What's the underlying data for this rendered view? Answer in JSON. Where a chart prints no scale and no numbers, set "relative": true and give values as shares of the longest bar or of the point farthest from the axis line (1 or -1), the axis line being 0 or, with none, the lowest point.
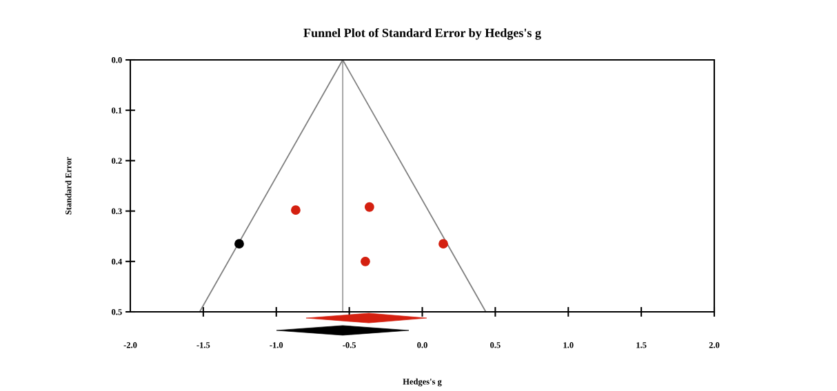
{
  "chart_data": [
    {
      "type": "scatter",
      "title": "Funnel Plot of Standard Error by Hedges's g",
      "ylabel": "Standard Error",
      "xlim": [
        -2.0,
        2.0
      ],
      "ylim": [
        0.5,
        0.0
      ],
      "tick_labels": "y",
      "xticks": [
        {
          "value": -2.0,
          "label": null
        },
        {
          "value": -1.5,
          "label": null
        },
        {
          "value": -1.0,
          "label": null
        },
        {
          "value": -0.5,
          "label": null
        },
        {
          "value": 0.0,
          "label": null
        },
        {
          "value": 0.5,
          "label": null
        },
        {
          "value": 1.0,
          "label": null
        },
        {
          "value": 1.5,
          "label": null
        },
        {
          "value": 2.0,
          "label": null
        }
      ],
      "yticks": [
        {
          "value": 0.0,
          "label": "0.0"
        },
        {
          "value": 0.1,
          "label": "0.1"
        },
        {
          "value": 0.2,
          "label": "0.2"
        },
        {
          "value": 0.3,
          "label": "0.3"
        },
        {
          "value": 0.4,
          "label": "0.4"
        },
        {
          "value": 0.5,
          "label": "0.5"
        }
      ],
      "series": [
        {
          "type": "line",
          "color": "#808080",
          "x": [
            -1.525,
            -0.545,
            0.435
          ],
          "values": [
            0.5,
            0.0,
            0.5
          ]
        },
        {
          "marker": "circle",
          "color": "#d42010",
          "x": [
            -0.867,
            -0.362,
            0.144,
            -0.39
          ],
          "values": [
            0.298,
            0.292,
            0.365,
            0.4
          ]
        },
        {
          "marker": "circle",
          "color": "#000000",
          "x": [
            -1.254
          ],
          "values": [
            0.365
          ]
        }
      ],
      "ref_lines": [
        {
          "axis": "x",
          "value": -0.545,
          "color": "#808080"
        }
      ]
    },
    {
      "type": "area",
      "xlabel": "Hedges's g",
      "relative": true,
      "tick_labels": "x",
      "xlim": [
        -2.0,
        2.0
      ],
      "xticks": [
        {
          "value": -2.0,
          "label": "-2.0"
        },
        {
          "value": -1.5,
          "label": "-1.5"
        },
        {
          "value": -1.0,
          "label": "-1.0"
        },
        {
          "value": -0.5,
          "label": "-0.5"
        },
        {
          "value": 0.0,
          "label": "0.0"
        },
        {
          "value": 0.5,
          "label": "0.5"
        },
        {
          "value": 1.0,
          "label": "1.0"
        },
        {
          "value": 1.5,
          "label": "1.5"
        },
        {
          "value": 2.0,
          "label": "2.0"
        }
      ],
      "series": [
        {
          "color": "#d42010",
          "x": [
            -0.796,
            -0.366,
            0.03,
            -0.366,
            -0.796
          ],
          "values": [
            0.78,
            1.0,
            0.78,
            0.56,
            0.78
          ]
        },
        {
          "color": "#000000",
          "x": [
            -0.999,
            -0.545,
            -0.092,
            -0.545,
            -0.999
          ],
          "values": [
            0.22,
            0.44,
            0.22,
            0.0,
            0.22
          ]
        }
      ]
    }
  ]
}
